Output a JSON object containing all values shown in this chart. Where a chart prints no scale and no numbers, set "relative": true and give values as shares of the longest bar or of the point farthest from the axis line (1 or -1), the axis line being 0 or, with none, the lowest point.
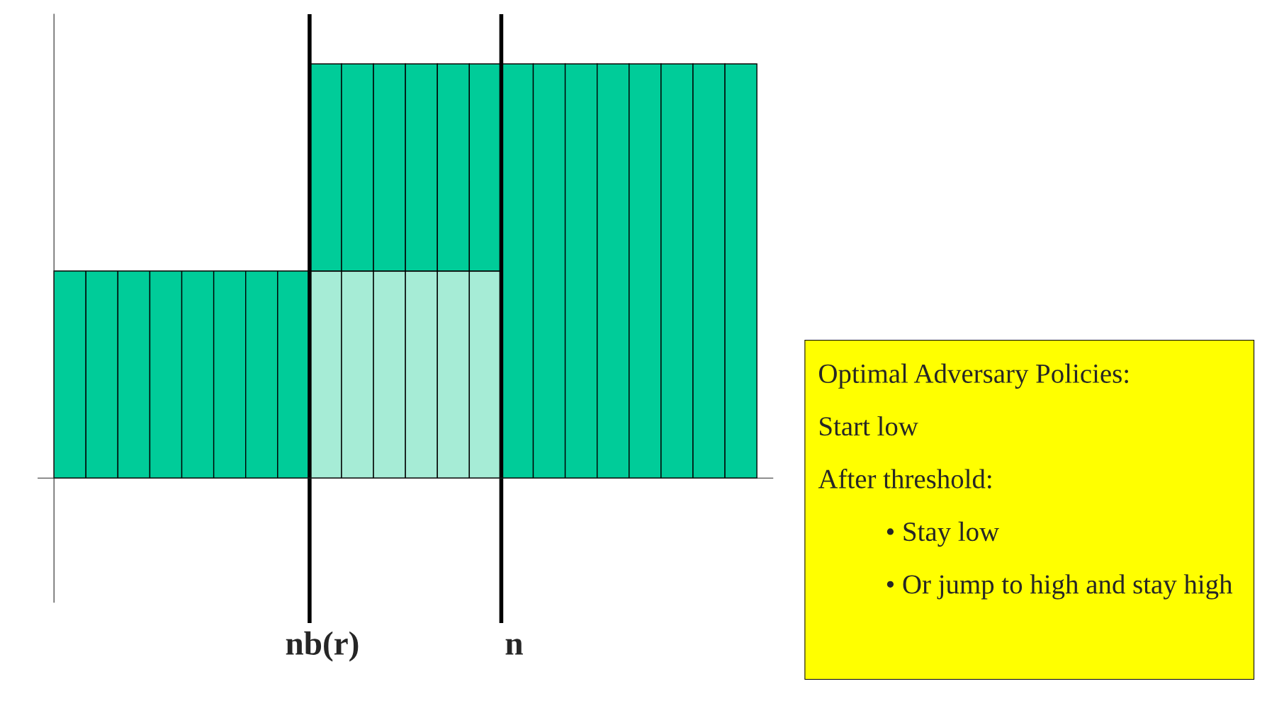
{
  "chart_data": {
    "type": "bar",
    "relative": true,
    "stacked": true,
    "categories": [
      null,
      null,
      null,
      null,
      null,
      null,
      null,
      null,
      null,
      null,
      null,
      null,
      null,
      null,
      null,
      null,
      null,
      null,
      null,
      null,
      null,
      null
    ],
    "series": [
      {
        "colors": [
          "#00cc99",
          "#00cc99",
          "#00cc99",
          "#00cc99",
          "#00cc99",
          "#00cc99",
          "#00cc99",
          "#00cc99",
          "#a6ecd6",
          "#a6ecd6",
          "#a6ecd6",
          "#a6ecd6",
          "#a6ecd6",
          "#a6ecd6",
          "#00cc99",
          "#00cc99",
          "#00cc99",
          "#00cc99",
          "#00cc99",
          "#00cc99",
          "#00cc99",
          "#00cc99"
        ],
        "values": [
          0.5,
          0.5,
          0.5,
          0.5,
          0.5,
          0.5,
          0.5,
          0.5,
          0.5,
          0.5,
          0.5,
          0.5,
          0.5,
          0.5,
          1,
          1,
          1,
          1,
          1,
          1,
          1,
          1
        ]
      },
      {
        "color": "#00cc99",
        "values": [
          0,
          0,
          0,
          0,
          0,
          0,
          0,
          0,
          0.5,
          0.5,
          0.5,
          0.5,
          0.5,
          0.5,
          0,
          0,
          0,
          0,
          0,
          0,
          0,
          0
        ]
      }
    ],
    "annotations": [
      "nb(r)",
      "n",
      "Optimal Adversary Policies:",
      "Start low",
      "After threshold:",
      "• Stay low",
      "• Or jump to high and stay high"
    ]
  }
}
